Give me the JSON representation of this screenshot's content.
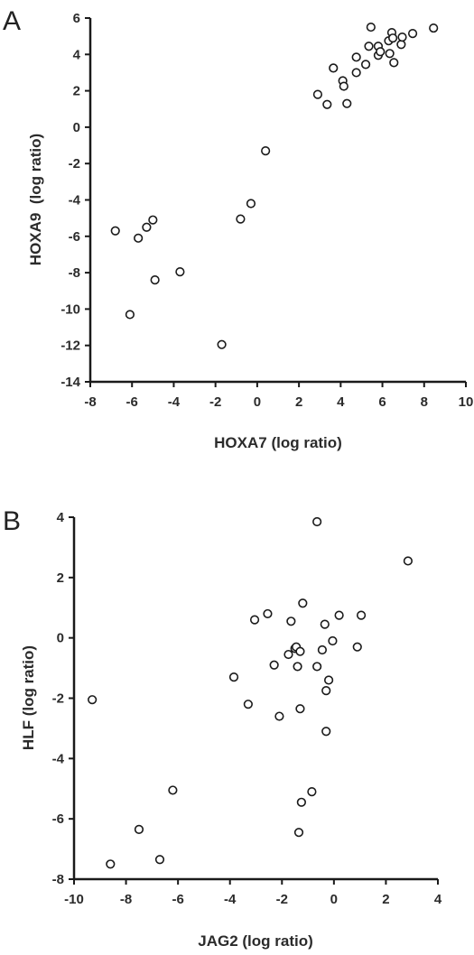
{
  "chart_data": [
    {
      "type": "scatter",
      "panel_label": "A",
      "xlabel": "HOXA7 (log ratio)",
      "ylabel": "HOXA9  (log ratio)",
      "xlim": [
        -8,
        10
      ],
      "ylim": [
        -14,
        6
      ],
      "xticks": [
        -8,
        -6,
        -4,
        -2,
        0,
        2,
        4,
        6,
        8,
        10
      ],
      "yticks": [
        -14,
        -12,
        -10,
        -8,
        -6,
        -4,
        -2,
        0,
        2,
        4,
        6
      ],
      "grid": false,
      "legend": "none",
      "marker": "open-circle",
      "points": [
        {
          "x": -6.8,
          "y": -5.7
        },
        {
          "x": -5.7,
          "y": -6.1
        },
        {
          "x": -5.3,
          "y": -5.5
        },
        {
          "x": -5.0,
          "y": -5.1
        },
        {
          "x": -4.9,
          "y": -8.4
        },
        {
          "x": -3.7,
          "y": -7.95
        },
        {
          "x": -6.1,
          "y": -10.3
        },
        {
          "x": -1.7,
          "y": -11.95
        },
        {
          "x": -0.8,
          "y": -5.05
        },
        {
          "x": -0.3,
          "y": -4.2
        },
        {
          "x": 0.4,
          "y": -1.3
        },
        {
          "x": 2.9,
          "y": 1.8
        },
        {
          "x": 3.35,
          "y": 1.25
        },
        {
          "x": 3.65,
          "y": 3.25
        },
        {
          "x": 4.1,
          "y": 2.55
        },
        {
          "x": 4.15,
          "y": 2.25
        },
        {
          "x": 4.3,
          "y": 1.3
        },
        {
          "x": 4.75,
          "y": 3.85
        },
        {
          "x": 4.75,
          "y": 3.0
        },
        {
          "x": 5.2,
          "y": 3.45
        },
        {
          "x": 5.35,
          "y": 4.45
        },
        {
          "x": 5.45,
          "y": 5.5
        },
        {
          "x": 5.8,
          "y": 4.45
        },
        {
          "x": 5.8,
          "y": 3.95
        },
        {
          "x": 5.9,
          "y": 4.15
        },
        {
          "x": 6.3,
          "y": 4.75
        },
        {
          "x": 6.35,
          "y": 4.05
        },
        {
          "x": 6.45,
          "y": 5.2
        },
        {
          "x": 6.5,
          "y": 4.9
        },
        {
          "x": 6.55,
          "y": 3.55
        },
        {
          "x": 6.9,
          "y": 4.55
        },
        {
          "x": 6.95,
          "y": 4.95
        },
        {
          "x": 7.45,
          "y": 5.15
        },
        {
          "x": 8.45,
          "y": 5.45
        }
      ]
    },
    {
      "type": "scatter",
      "panel_label": "B",
      "xlabel": "JAG2 (log ratio)",
      "ylabel": "HLF (log ratio)",
      "xlim": [
        -10,
        4
      ],
      "ylim": [
        -8,
        4
      ],
      "xticks": [
        -10,
        -8,
        -6,
        -4,
        -2,
        0,
        2,
        4
      ],
      "yticks": [
        -8,
        -6,
        -4,
        -2,
        0,
        2,
        4
      ],
      "grid": false,
      "legend": "none",
      "marker": "open-circle",
      "points": [
        {
          "x": -9.3,
          "y": -2.05
        },
        {
          "x": -8.6,
          "y": -7.5
        },
        {
          "x": -7.5,
          "y": -6.35
        },
        {
          "x": -6.7,
          "y": -7.35
        },
        {
          "x": -6.2,
          "y": -5.05
        },
        {
          "x": -3.85,
          "y": -1.3
        },
        {
          "x": -3.3,
          "y": -2.2
        },
        {
          "x": -3.05,
          "y": 0.6
        },
        {
          "x": -2.55,
          "y": 0.8
        },
        {
          "x": -2.3,
          "y": -0.9
        },
        {
          "x": -2.1,
          "y": -2.6
        },
        {
          "x": -1.75,
          "y": -0.55
        },
        {
          "x": -1.65,
          "y": 0.55
        },
        {
          "x": -1.5,
          "y": -0.35
        },
        {
          "x": -1.45,
          "y": -0.3
        },
        {
          "x": -1.4,
          "y": -0.95
        },
        {
          "x": -1.35,
          "y": -6.45
        },
        {
          "x": -1.3,
          "y": -0.45
        },
        {
          "x": -1.3,
          "y": -2.35
        },
        {
          "x": -1.25,
          "y": -5.45
        },
        {
          "x": -1.2,
          "y": 1.15
        },
        {
          "x": -0.85,
          "y": -5.1
        },
        {
          "x": -0.65,
          "y": -0.95
        },
        {
          "x": -0.65,
          "y": 3.85
        },
        {
          "x": -0.45,
          "y": -0.4
        },
        {
          "x": -0.35,
          "y": 0.45
        },
        {
          "x": -0.3,
          "y": -1.75
        },
        {
          "x": -0.3,
          "y": -3.1
        },
        {
          "x": -0.2,
          "y": -1.4
        },
        {
          "x": -0.05,
          "y": -0.1
        },
        {
          "x": 0.2,
          "y": 0.75
        },
        {
          "x": 0.9,
          "y": -0.3
        },
        {
          "x": 1.05,
          "y": 0.75
        },
        {
          "x": 2.85,
          "y": 2.55
        }
      ]
    }
  ]
}
